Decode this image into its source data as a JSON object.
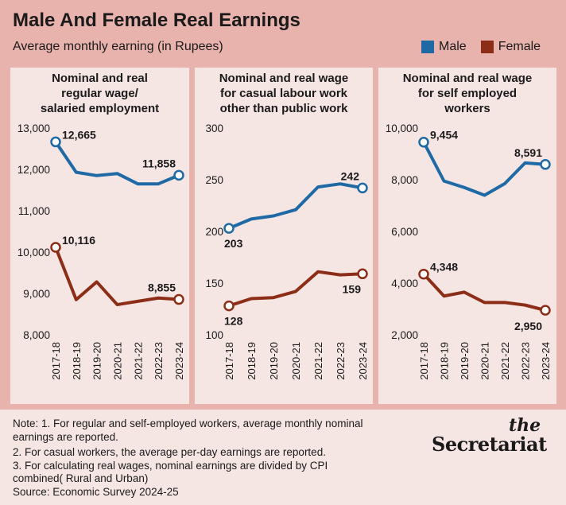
{
  "title": "Male And Female Real Earnings",
  "subtitle": "Average monthly earning (in Rupees)",
  "legend": {
    "male": {
      "label": "Male",
      "color": "#1f6aa5"
    },
    "female": {
      "label": "Female",
      "color": "#8c2e17"
    }
  },
  "chart_data": [
    {
      "type": "line",
      "title": [
        "Nominal and real",
        "regular wage/",
        "salaried employment"
      ],
      "x": [
        "2017-18",
        "2018-19",
        "2019-20",
        "2020-21",
        "2021-22",
        "2022-23",
        "2023-24"
      ],
      "ylim": [
        8000,
        13000
      ],
      "yticks": [
        8000,
        9000,
        10000,
        11000,
        12000,
        13000
      ],
      "ytick_labels": [
        "8,000",
        "9,000",
        "10,000",
        "11,000",
        "12,000",
        "13,000"
      ],
      "series": [
        {
          "name": "Male",
          "values": [
            12665,
            11930,
            11850,
            11900,
            11650,
            11650,
            11858
          ],
          "labels": [
            {
              "i": 0,
              "text": "12,665"
            },
            {
              "i": 6,
              "text": "11,858"
            }
          ]
        },
        {
          "name": "Female",
          "values": [
            10116,
            8850,
            9280,
            8730,
            8810,
            8890,
            8855
          ],
          "labels": [
            {
              "i": 0,
              "text": "10,116"
            },
            {
              "i": 6,
              "text": "8,855"
            }
          ]
        }
      ]
    },
    {
      "type": "line",
      "title": [
        "Nominal and real wage",
        "for casual labour work",
        "other than public work"
      ],
      "x": [
        "2017-18",
        "2018-19",
        "2019-20",
        "2020-21",
        "2021-22",
        "2022-23",
        "2023-24"
      ],
      "ylim": [
        100,
        300
      ],
      "yticks": [
        100,
        150,
        200,
        250,
        300
      ],
      "ytick_labels": [
        "100",
        "150",
        "200",
        "250",
        "300"
      ],
      "series": [
        {
          "name": "Male",
          "values": [
            203,
            212,
            215,
            221,
            243,
            246,
            242
          ],
          "labels": [
            {
              "i": 0,
              "text": "203"
            },
            {
              "i": 6,
              "text": "242"
            }
          ]
        },
        {
          "name": "Female",
          "values": [
            128,
            135,
            136,
            142,
            161,
            158,
            159
          ],
          "labels": [
            {
              "i": 0,
              "text": "128"
            },
            {
              "i": 6,
              "text": "159"
            }
          ]
        }
      ]
    },
    {
      "type": "line",
      "title": [
        "Nominal and real wage",
        "for self employed",
        "workers"
      ],
      "x": [
        "2017-18",
        "2018-19",
        "2019-20",
        "2020-21",
        "2021-22",
        "2022-23",
        "2023-24"
      ],
      "ylim": [
        2000,
        10000
      ],
      "yticks": [
        2000,
        4000,
        6000,
        8000,
        10000
      ],
      "ytick_labels": [
        "2,000",
        "4,000",
        "6,000",
        "8,000",
        "10,000"
      ],
      "series": [
        {
          "name": "Male",
          "values": [
            9454,
            7950,
            7700,
            7400,
            7850,
            8650,
            8591
          ],
          "labels": [
            {
              "i": 0,
              "text": "9,454"
            },
            {
              "i": 6,
              "text": "8,591"
            }
          ]
        },
        {
          "name": "Female",
          "values": [
            4348,
            3500,
            3650,
            3250,
            3250,
            3150,
            2950
          ],
          "labels": [
            {
              "i": 0,
              "text": "4,348"
            },
            {
              "i": 6,
              "text": "2,950"
            }
          ]
        }
      ]
    }
  ],
  "notes": [
    "Note: 1. For regular and self-employed workers, average monthly nominal",
    "earnings are reported.",
    "2. For casual workers, the average per-day earnings are reported.",
    "3. For calculating real wages, nominal earnings are divided by CPI",
    "combined( Rural and Urban)",
    "Source: Economic Survey 2024-25"
  ],
  "logo": {
    "top": "the",
    "main": "Secretariat"
  }
}
